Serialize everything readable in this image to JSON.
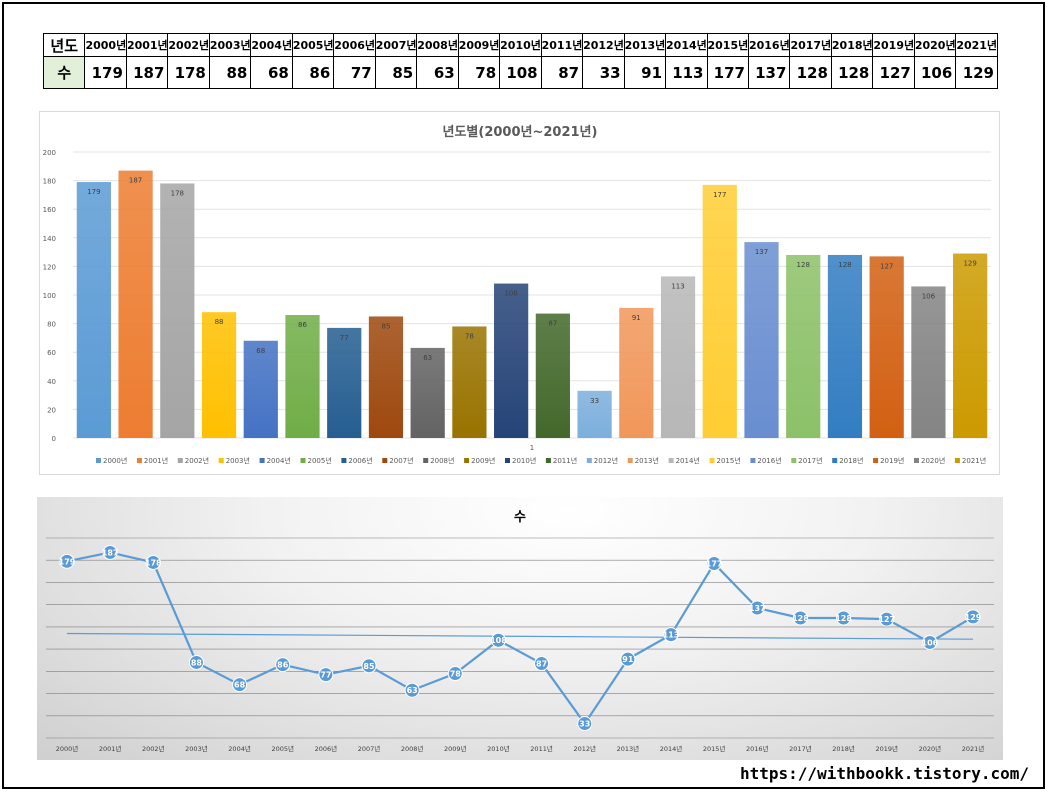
{
  "table": {
    "header_label": "년도",
    "value_label": "수",
    "years": [
      "2000년",
      "2001년",
      "2002년",
      "2003년",
      "2004년",
      "2005년",
      "2006년",
      "2007년",
      "2008년",
      "2009년",
      "2010년",
      "2011년",
      "2012년",
      "2013년",
      "2014년",
      "2015년",
      "2016년",
      "2017년",
      "2018년",
      "2019년",
      "2020년",
      "2021년"
    ],
    "values": [
      179,
      187,
      178,
      88,
      68,
      86,
      77,
      85,
      63,
      78,
      108,
      87,
      33,
      91,
      113,
      177,
      137,
      128,
      128,
      127,
      106,
      129
    ]
  },
  "chart_data": [
    {
      "type": "bar",
      "title": "년도별(2000년~2021년)",
      "category_label": "1",
      "ylim": [
        0,
        200
      ],
      "yticks": [
        0,
        20,
        40,
        60,
        80,
        100,
        120,
        140,
        160,
        180,
        200
      ],
      "grid": true,
      "legend_position": "bottom",
      "series": [
        {
          "name": "2000년",
          "value": 179,
          "color": "#5b9bd5"
        },
        {
          "name": "2001년",
          "value": 187,
          "color": "#ed7d31"
        },
        {
          "name": "2002년",
          "value": 178,
          "color": "#a5a5a5"
        },
        {
          "name": "2003년",
          "value": 88,
          "color": "#ffc000"
        },
        {
          "name": "2004년",
          "value": 68,
          "color": "#4472c4"
        },
        {
          "name": "2005년",
          "value": 86,
          "color": "#70ad47"
        },
        {
          "name": "2006년",
          "value": 77,
          "color": "#255e91"
        },
        {
          "name": "2007년",
          "value": 85,
          "color": "#9e480e"
        },
        {
          "name": "2008년",
          "value": 63,
          "color": "#636363"
        },
        {
          "name": "2009년",
          "value": 78,
          "color": "#997300"
        },
        {
          "name": "2010년",
          "value": 108,
          "color": "#264478"
        },
        {
          "name": "2011년",
          "value": 87,
          "color": "#43682b"
        },
        {
          "name": "2012년",
          "value": 33,
          "color": "#7cafdd"
        },
        {
          "name": "2013년",
          "value": 91,
          "color": "#f1975a"
        },
        {
          "name": "2014년",
          "value": 113,
          "color": "#b7b7b7"
        },
        {
          "name": "2015년",
          "value": 177,
          "color": "#ffcd33"
        },
        {
          "name": "2016년",
          "value": 137,
          "color": "#698ed0"
        },
        {
          "name": "2017년",
          "value": 128,
          "color": "#8cc168"
        },
        {
          "name": "2018년",
          "value": 128,
          "color": "#327dc2"
        },
        {
          "name": "2019년",
          "value": 127,
          "color": "#d26012"
        },
        {
          "name": "2020년",
          "value": 106,
          "color": "#848484"
        },
        {
          "name": "2021년",
          "value": 129,
          "color": "#cc9a00"
        }
      ]
    },
    {
      "type": "line",
      "title": "수",
      "categories": [
        "2000년",
        "2001년",
        "2002년",
        "2003년",
        "2004년",
        "2005년",
        "2006년",
        "2007년",
        "2008년",
        "2009년",
        "2010년",
        "2011년",
        "2012년",
        "2013년",
        "2014년",
        "2015년",
        "2016년",
        "2017년",
        "2018년",
        "2019년",
        "2020년",
        "2021년"
      ],
      "values": [
        179,
        187,
        178,
        88,
        68,
        86,
        77,
        85,
        63,
        78,
        108,
        87,
        33,
        91,
        113,
        177,
        137,
        128,
        128,
        127,
        106,
        129
      ],
      "trendline": true,
      "ylim": [
        20,
        200
      ],
      "grid": true,
      "line_color": "#5b9bd5"
    }
  ],
  "footer": {
    "url": "https://withbookk.tistory.com/"
  }
}
